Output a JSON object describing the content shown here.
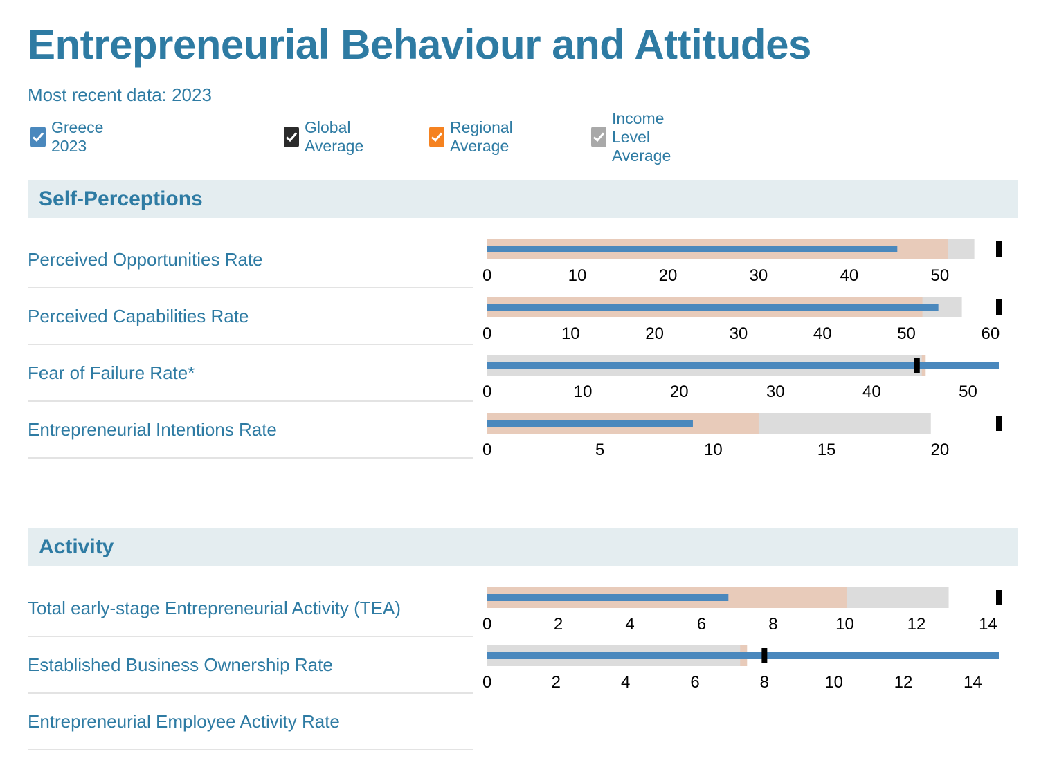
{
  "header": {
    "title": "Entrepreneurial Behaviour and Attitudes",
    "subtitle": "Most recent data: 2023"
  },
  "legend": [
    {
      "label": "Greece 2023",
      "color": "#4a88bd",
      "checked": true
    },
    {
      "label": "Global Average",
      "color": "#2b2b2b",
      "checked": true
    },
    {
      "label": "Regional Average",
      "color": "#f58220",
      "checked": true
    },
    {
      "label": "Income Level Average",
      "color": "#a9a9a9",
      "checked": true
    }
  ],
  "sections": {
    "self_perceptions": "Self-Perceptions",
    "activity": "Activity"
  },
  "colors": {
    "country_bar": "#4a88bd",
    "regional_band": "#e8cbba",
    "income_band": "#dcdcdc",
    "global_marker": "#000000"
  },
  "chart_data": [
    {
      "type": "bar",
      "label": "Perceived Opportunities Rate",
      "section": "Self-Perceptions",
      "axis_max": 56.5,
      "ticks": [
        0,
        10,
        20,
        30,
        40,
        50
      ],
      "country": 45.3,
      "regional": 50.9,
      "income": 53.8,
      "global": 56.5
    },
    {
      "type": "bar",
      "label": "Perceived Capabilities Rate",
      "section": "Self-Perceptions",
      "axis_max": 61,
      "ticks": [
        0,
        10,
        20,
        30,
        40,
        50,
        60
      ],
      "country": 53.8,
      "regional": 51.9,
      "income": 56.6,
      "global": 61
    },
    {
      "type": "bar",
      "label": "Fear of Failure Rate*",
      "section": "Self-Perceptions",
      "axis_max": 53.2,
      "ticks": [
        0,
        10,
        20,
        30,
        40,
        50
      ],
      "country": 53.2,
      "regional": 45.6,
      "income": 45.2,
      "global": 44.7
    },
    {
      "type": "bar",
      "label": "Entrepreneurial Intentions Rate",
      "section": "Self-Perceptions",
      "axis_max": 22.6,
      "ticks": [
        0,
        5,
        10,
        15,
        20
      ],
      "country": 9.1,
      "regional": 12,
      "income": 19.6,
      "global": 22.6
    },
    {
      "type": "bar",
      "label": "Total early-stage Entrepreneurial Activity (TEA)",
      "section": "Activity",
      "axis_max": 14.3,
      "ticks": [
        0,
        2,
        4,
        6,
        8,
        10,
        12,
        14
      ],
      "country": 6.75,
      "regional": 10.05,
      "income": 12.9,
      "global": 14.3
    },
    {
      "type": "bar",
      "label": "Established Business Ownership Rate",
      "section": "Activity",
      "axis_max": 14.75,
      "ticks": [
        0,
        2,
        4,
        6,
        8,
        10,
        12,
        14
      ],
      "country": 14.75,
      "regional": 7.5,
      "income": 7.3,
      "global": 8
    },
    {
      "type": "bar",
      "label": "Entrepreneurial Employee Activity Rate",
      "section": "Activity",
      "axis_max": null,
      "ticks": [],
      "country": null,
      "regional": null,
      "income": null,
      "global": null
    }
  ]
}
